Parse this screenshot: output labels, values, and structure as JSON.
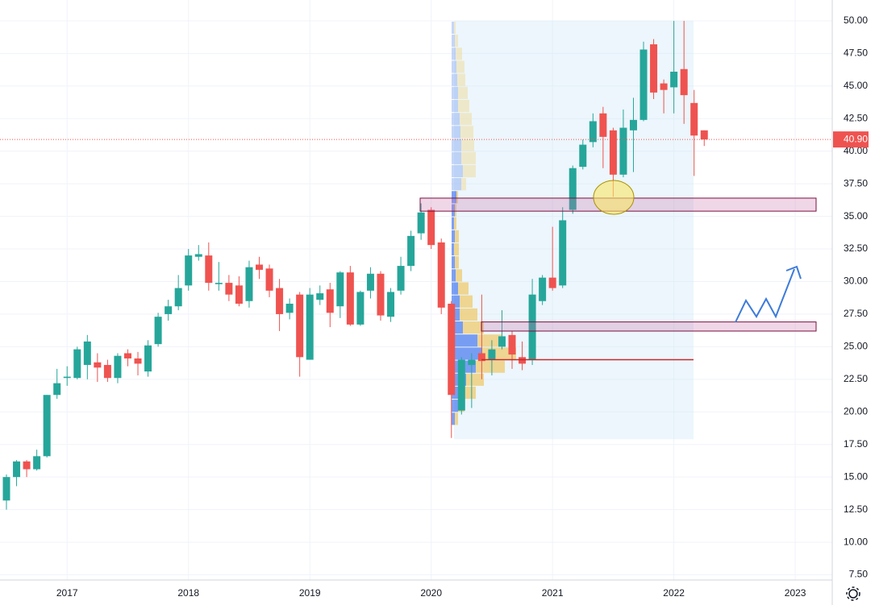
{
  "chart_data": {
    "type": "candlestick",
    "categories": [
      null,
      null,
      null,
      null,
      null,
      null,
      "2017",
      null,
      null,
      null,
      null,
      null,
      null,
      null,
      null,
      null,
      null,
      null,
      "2018",
      null,
      null,
      null,
      null,
      null,
      null,
      null,
      null,
      null,
      null,
      null,
      "2019",
      null,
      null,
      null,
      null,
      null,
      null,
      null,
      null,
      null,
      null,
      null,
      "2020",
      null,
      null,
      null,
      null,
      null,
      null,
      null,
      null,
      null,
      null,
      null,
      "2021",
      null,
      null,
      null,
      null,
      null,
      null,
      null,
      null,
      null,
      null,
      null,
      "2022",
      null,
      null,
      null,
      null,
      null,
      null,
      null,
      null,
      null,
      null,
      null,
      "2023"
    ],
    "open": [
      13.2,
      15,
      16.2,
      15.6,
      16.6,
      21.3,
      22.6,
      22.6,
      23.6,
      23.8,
      23.6,
      22.6,
      24.5,
      24.1,
      23.1,
      25.2,
      27.5,
      28.1,
      29.7,
      31.9,
      32,
      29.8,
      29.9,
      29.7,
      28.5,
      31.3,
      31,
      29.5,
      27.6,
      29,
      24,
      28.6,
      29.4,
      28.1,
      30.7,
      26.7,
      29.3,
      30.6,
      27.3,
      29.3,
      31.2,
      33.7,
      35.5,
      33,
      28.3,
      20.1,
      23.6,
      24.5,
      24,
      25,
      25.9,
      24.2,
      24,
      28.5,
      30.3,
      29.7,
      35.5,
      38.8,
      40.7,
      42.9,
      41.6,
      38.2,
      41.6,
      42.4,
      48.2,
      45.2,
      44.9,
      46.3,
      43.7,
      41.6,
      null,
      null,
      null,
      null,
      null,
      null,
      null,
      null,
      null
    ],
    "high": [
      15.2,
      16.3,
      16.3,
      17.1,
      21.3,
      23.3,
      23.5,
      25,
      25.9,
      24.5,
      24,
      24.5,
      24.8,
      24.6,
      25.5,
      27.6,
      28.6,
      30.5,
      32.5,
      32.8,
      33,
      31.5,
      30.5,
      30.4,
      31.6,
      31.9,
      31.3,
      30.2,
      28.7,
      29.2,
      29.5,
      29.7,
      29.9,
      30.8,
      31.2,
      29.3,
      31.1,
      30.8,
      29.5,
      31.9,
      33.9,
      36,
      35.7,
      33.3,
      28.5,
      24.2,
      24.5,
      29,
      25.5,
      27.8,
      26.2,
      25.4,
      30.2,
      30.5,
      34.2,
      35.7,
      38.9,
      40.9,
      42.9,
      43.4,
      41.8,
      43.2,
      44.1,
      48.4,
      48.6,
      45.5,
      50,
      50,
      44.7,
      41.6,
      null,
      null,
      null,
      null,
      null,
      null,
      null,
      null,
      null
    ],
    "low": [
      12.5,
      14.3,
      15,
      15.5,
      16.5,
      21,
      22,
      22.5,
      22.5,
      22.3,
      22.3,
      22.2,
      23.5,
      22.8,
      22.7,
      25,
      27,
      27.8,
      29.3,
      31.6,
      29.3,
      29.3,
      28.5,
      28.1,
      28,
      30.2,
      28.8,
      26.2,
      27.1,
      22.7,
      24,
      28.2,
      26.5,
      27.2,
      26.6,
      26.6,
      28.7,
      27,
      26.9,
      29,
      30.8,
      33.2,
      32.5,
      27.5,
      18,
      19.8,
      20.3,
      22.5,
      22.8,
      24.8,
      23.3,
      23.2,
      23.6,
      28.2,
      29.3,
      29.5,
      35.2,
      38.6,
      40.3,
      38.7,
      36.5,
      38,
      38.4,
      42.3,
      44,
      42.9,
      42.9,
      42.1,
      38.1,
      40.4,
      null,
      null,
      null,
      null,
      null,
      null,
      null,
      null,
      null
    ],
    "close": [
      15,
      16.2,
      15.6,
      16.6,
      21.3,
      22.2,
      22.7,
      24.8,
      25.4,
      23.4,
      22.6,
      24.3,
      24.1,
      23.7,
      25.1,
      27.3,
      28.1,
      29.5,
      32,
      32.1,
      29.9,
      29.9,
      29,
      28.3,
      31.1,
      30.9,
      29.3,
      27.5,
      28.3,
      24.2,
      29,
      29.1,
      27.6,
      30.7,
      26.7,
      29.2,
      30.6,
      27.4,
      29.2,
      31.2,
      33.5,
      35.3,
      32.8,
      28,
      21.3,
      24,
      24,
      23.9,
      24.8,
      25.8,
      24.4,
      23.7,
      29,
      30.3,
      29.5,
      34.7,
      38.7,
      40.5,
      42.3,
      41.1,
      38.2,
      41.8,
      42.4,
      47.8,
      44.5,
      44.7,
      46.1,
      44.3,
      41.2,
      40.9,
      null,
      null,
      null,
      null,
      null,
      null,
      null,
      null,
      null
    ],
    "up_color": "#26a69a",
    "down_color": "#ef5350",
    "ylim": [
      7.1,
      51.6
    ],
    "yticks": [
      {
        "value": 7.5,
        "label": "7.50"
      },
      {
        "value": 10,
        "label": "10.00"
      },
      {
        "value": 12.5,
        "label": "12.50"
      },
      {
        "value": 15,
        "label": "15.00"
      },
      {
        "value": 17.5,
        "label": "17.50"
      },
      {
        "value": 20,
        "label": "20.00"
      },
      {
        "value": 22.5,
        "label": "22.50"
      },
      {
        "value": 25,
        "label": "25.00"
      },
      {
        "value": 27.5,
        "label": "27.50"
      },
      {
        "value": 30,
        "label": "30.00"
      },
      {
        "value": 32.5,
        "label": "32.50"
      },
      {
        "value": 35,
        "label": "35.00"
      },
      {
        "value": 37.5,
        "label": "37.50"
      },
      {
        "value": 40,
        "label": "40.00"
      },
      {
        "value": 42.5,
        "label": "42.50"
      },
      {
        "value": 45,
        "label": "45.00"
      },
      {
        "value": 47.5,
        "label": "47.50"
      },
      {
        "value": 50,
        "label": "50.00"
      }
    ],
    "grid": true,
    "last_price": {
      "value": 40.9,
      "label": "40.90",
      "color": "#ef5350"
    },
    "zones": [
      {
        "low": 35.4,
        "high": 36.4
      },
      {
        "low": 26.2,
        "high": 26.9
      }
    ],
    "support_line": 24.0,
    "volume_profile": {
      "price_from": [
        19,
        20,
        21,
        22,
        23,
        24,
        25,
        26,
        27,
        28,
        29,
        30,
        31,
        32,
        33,
        34,
        35,
        36,
        37,
        38,
        39,
        40,
        41,
        42,
        43,
        44,
        45,
        46,
        47,
        48,
        49
      ],
      "up": [
        4,
        8,
        10,
        18,
        30,
        38,
        32,
        14,
        10,
        10,
        8,
        5,
        4,
        3,
        4,
        3,
        4,
        6,
        12,
        14,
        12,
        12,
        11,
        10,
        8,
        8,
        7,
        6,
        5,
        4,
        3
      ],
      "down": [
        4,
        8,
        20,
        22,
        36,
        42,
        30,
        26,
        22,
        16,
        13,
        8,
        5,
        6,
        5,
        3,
        2,
        2,
        6,
        16,
        18,
        16,
        16,
        15,
        14,
        12,
        10,
        10,
        8,
        4,
        2
      ],
      "range": [
        17.9,
        50
      ]
    }
  }
}
